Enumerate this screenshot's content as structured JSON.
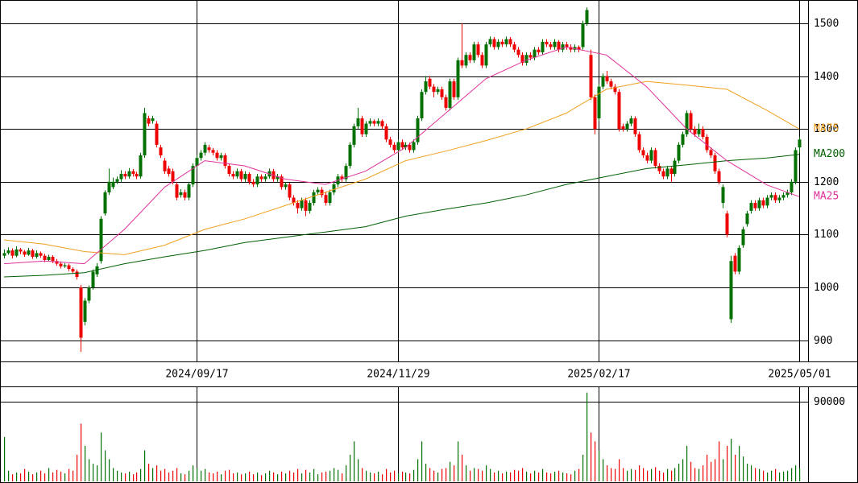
{
  "chart_data": {
    "type": "candlestick",
    "candles": [
      [
        1060,
        1072,
        1055,
        1065
      ],
      [
        1065,
        1076,
        1062,
        1070
      ],
      [
        1070,
        1074,
        1055,
        1060
      ],
      [
        1060,
        1078,
        1057,
        1072
      ],
      [
        1072,
        1075,
        1063,
        1068
      ],
      [
        1068,
        1071,
        1058,
        1062
      ],
      [
        1062,
        1075,
        1060,
        1070
      ],
      [
        1070,
        1073,
        1054,
        1058
      ],
      [
        1058,
        1070,
        1055,
        1065
      ],
      [
        1065,
        1068,
        1056,
        1060
      ],
      [
        1060,
        1064,
        1048,
        1052
      ],
      [
        1052,
        1062,
        1050,
        1058
      ],
      [
        1058,
        1061,
        1046,
        1050
      ],
      [
        1050,
        1054,
        1041,
        1045
      ],
      [
        1045,
        1049,
        1036,
        1040
      ],
      [
        1040,
        1046,
        1037,
        1042
      ],
      [
        1042,
        1045,
        1031,
        1035
      ],
      [
        1035,
        1038,
        1026,
        1030
      ],
      [
        1030,
        1034,
        1015,
        1020
      ],
      [
        1000,
        1005,
        878,
        905
      ],
      [
        935,
        980,
        928,
        975
      ],
      [
        975,
        1004,
        970,
        1000
      ],
      [
        1000,
        1034,
        996,
        1030
      ],
      [
        1025,
        1046,
        1020,
        1040
      ],
      [
        1050,
        1135,
        1045,
        1130
      ],
      [
        1140,
        1184,
        1136,
        1180
      ],
      [
        1180,
        1225,
        1175,
        1200
      ],
      [
        1190,
        1208,
        1186,
        1200
      ],
      [
        1200,
        1210,
        1196,
        1205
      ],
      [
        1205,
        1222,
        1200,
        1215
      ],
      [
        1215,
        1220,
        1205,
        1210
      ],
      [
        1210,
        1226,
        1206,
        1220
      ],
      [
        1220,
        1224,
        1210,
        1215
      ],
      [
        1215,
        1219,
        1205,
        1210
      ],
      [
        1210,
        1255,
        1206,
        1250
      ],
      [
        1250,
        1340,
        1245,
        1330
      ],
      [
        1320,
        1325,
        1305,
        1310
      ],
      [
        1315,
        1325,
        1310,
        1320
      ],
      [
        1310,
        1315,
        1265,
        1270
      ],
      [
        1265,
        1270,
        1245,
        1250
      ],
      [
        1240,
        1245,
        1215,
        1220
      ],
      [
        1225,
        1230,
        1210,
        1215
      ],
      [
        1220,
        1225,
        1195,
        1200
      ],
      [
        1195,
        1200,
        1165,
        1170
      ],
      [
        1175,
        1186,
        1170,
        1180
      ],
      [
        1180,
        1185,
        1165,
        1170
      ],
      [
        1170,
        1200,
        1165,
        1195
      ],
      [
        1195,
        1235,
        1190,
        1230
      ],
      [
        1230,
        1250,
        1225,
        1245
      ],
      [
        1245,
        1260,
        1240,
        1255
      ],
      [
        1255,
        1275,
        1250,
        1270
      ],
      [
        1265,
        1270,
        1255,
        1260
      ],
      [
        1260,
        1264,
        1250,
        1255
      ],
      [
        1255,
        1260,
        1240,
        1245
      ],
      [
        1245,
        1255,
        1240,
        1250
      ],
      [
        1250,
        1254,
        1225,
        1230
      ],
      [
        1230,
        1235,
        1210,
        1215
      ],
      [
        1215,
        1220,
        1205,
        1210
      ],
      [
        1210,
        1225,
        1206,
        1220
      ],
      [
        1220,
        1224,
        1200,
        1205
      ],
      [
        1205,
        1220,
        1200,
        1215
      ],
      [
        1215,
        1218,
        1195,
        1200
      ],
      [
        1200,
        1205,
        1190,
        1195
      ],
      [
        1195,
        1215,
        1190,
        1210
      ],
      [
        1210,
        1214,
        1200,
        1205
      ],
      [
        1205,
        1215,
        1200,
        1210
      ],
      [
        1210,
        1225,
        1206,
        1220
      ],
      [
        1220,
        1224,
        1200,
        1205
      ],
      [
        1205,
        1215,
        1200,
        1210
      ],
      [
        1210,
        1214,
        1185,
        1190
      ],
      [
        1190,
        1200,
        1185,
        1195
      ],
      [
        1195,
        1198,
        1165,
        1170
      ],
      [
        1170,
        1175,
        1155,
        1160
      ],
      [
        1160,
        1165,
        1140,
        1150
      ],
      [
        1150,
        1170,
        1145,
        1165
      ],
      [
        1165,
        1170,
        1135,
        1145
      ],
      [
        1145,
        1165,
        1140,
        1160
      ],
      [
        1160,
        1185,
        1155,
        1180
      ],
      [
        1180,
        1190,
        1175,
        1185
      ],
      [
        1185,
        1190,
        1170,
        1175
      ],
      [
        1175,
        1180,
        1155,
        1160
      ],
      [
        1160,
        1185,
        1155,
        1180
      ],
      [
        1180,
        1200,
        1175,
        1195
      ],
      [
        1195,
        1215,
        1190,
        1210
      ],
      [
        1210,
        1214,
        1200,
        1205
      ],
      [
        1205,
        1235,
        1200,
        1230
      ],
      [
        1230,
        1275,
        1225,
        1270
      ],
      [
        1270,
        1310,
        1265,
        1305
      ],
      [
        1305,
        1340,
        1300,
        1320
      ],
      [
        1320,
        1325,
        1285,
        1290
      ],
      [
        1290,
        1315,
        1285,
        1310
      ],
      [
        1310,
        1320,
        1305,
        1315
      ],
      [
        1315,
        1318,
        1305,
        1310
      ],
      [
        1310,
        1320,
        1305,
        1315
      ],
      [
        1315,
        1318,
        1300,
        1305
      ],
      [
        1305,
        1310,
        1275,
        1280
      ],
      [
        1280,
        1285,
        1265,
        1270
      ],
      [
        1270,
        1275,
        1255,
        1260
      ],
      [
        1260,
        1280,
        1255,
        1275
      ],
      [
        1275,
        1280,
        1260,
        1265
      ],
      [
        1265,
        1275,
        1260,
        1270
      ],
      [
        1270,
        1274,
        1255,
        1260
      ],
      [
        1260,
        1280,
        1255,
        1275
      ],
      [
        1275,
        1325,
        1270,
        1320
      ],
      [
        1320,
        1375,
        1315,
        1370
      ],
      [
        1370,
        1400,
        1365,
        1390
      ],
      [
        1395,
        1400,
        1375,
        1380
      ],
      [
        1380,
        1385,
        1360,
        1370
      ],
      [
        1370,
        1380,
        1365,
        1375
      ],
      [
        1375,
        1380,
        1355,
        1360
      ],
      [
        1360,
        1365,
        1335,
        1340
      ],
      [
        1340,
        1395,
        1335,
        1390
      ],
      [
        1390,
        1395,
        1355,
        1360
      ],
      [
        1360,
        1435,
        1355,
        1430
      ],
      [
        1430,
        1500,
        1415,
        1420
      ],
      [
        1420,
        1445,
        1415,
        1440
      ],
      [
        1440,
        1445,
        1425,
        1430
      ],
      [
        1430,
        1465,
        1425,
        1460
      ],
      [
        1460,
        1465,
        1435,
        1440
      ],
      [
        1440,
        1445,
        1415,
        1420
      ],
      [
        1420,
        1465,
        1415,
        1460
      ],
      [
        1460,
        1475,
        1455,
        1470
      ],
      [
        1470,
        1474,
        1450,
        1455
      ],
      [
        1455,
        1470,
        1450,
        1465
      ],
      [
        1465,
        1470,
        1455,
        1460
      ],
      [
        1460,
        1475,
        1455,
        1470
      ],
      [
        1470,
        1474,
        1455,
        1460
      ],
      [
        1460,
        1465,
        1445,
        1450
      ],
      [
        1450,
        1455,
        1435,
        1440
      ],
      [
        1440,
        1445,
        1420,
        1425
      ],
      [
        1425,
        1445,
        1420,
        1440
      ],
      [
        1440,
        1445,
        1430,
        1435
      ],
      [
        1435,
        1455,
        1430,
        1450
      ],
      [
        1450,
        1455,
        1440,
        1445
      ],
      [
        1445,
        1470,
        1440,
        1465
      ],
      [
        1465,
        1470,
        1455,
        1460
      ],
      [
        1460,
        1465,
        1450,
        1455
      ],
      [
        1455,
        1470,
        1450,
        1465
      ],
      [
        1465,
        1468,
        1445,
        1450
      ],
      [
        1450,
        1465,
        1445,
        1460
      ],
      [
        1460,
        1465,
        1450,
        1455
      ],
      [
        1455,
        1460,
        1445,
        1450
      ],
      [
        1450,
        1460,
        1445,
        1455
      ],
      [
        1455,
        1458,
        1445,
        1450
      ],
      [
        1455,
        1505,
        1450,
        1500
      ],
      [
        1500,
        1530,
        1495,
        1525
      ],
      [
        1440,
        1450,
        1355,
        1360
      ],
      [
        1360,
        1365,
        1290,
        1300
      ],
      [
        1320,
        1385,
        1315,
        1380
      ],
      [
        1380,
        1405,
        1375,
        1400
      ],
      [
        1400,
        1410,
        1385,
        1390
      ],
      [
        1390,
        1395,
        1375,
        1380
      ],
      [
        1380,
        1385,
        1365,
        1370
      ],
      [
        1370,
        1375,
        1295,
        1300
      ],
      [
        1305,
        1310,
        1295,
        1300
      ],
      [
        1300,
        1315,
        1295,
        1310
      ],
      [
        1310,
        1325,
        1305,
        1320
      ],
      [
        1320,
        1324,
        1285,
        1290
      ],
      [
        1290,
        1295,
        1255,
        1260
      ],
      [
        1260,
        1265,
        1245,
        1250
      ],
      [
        1250,
        1255,
        1235,
        1240
      ],
      [
        1240,
        1265,
        1235,
        1260
      ],
      [
        1260,
        1264,
        1225,
        1230
      ],
      [
        1230,
        1235,
        1215,
        1220
      ],
      [
        1220,
        1225,
        1205,
        1210
      ],
      [
        1210,
        1230,
        1205,
        1225
      ],
      [
        1225,
        1228,
        1200,
        1215
      ],
      [
        1215,
        1245,
        1210,
        1240
      ],
      [
        1240,
        1275,
        1235,
        1270
      ],
      [
        1270,
        1295,
        1265,
        1290
      ],
      [
        1290,
        1335,
        1285,
        1330
      ],
      [
        1330,
        1335,
        1295,
        1300
      ],
      [
        1300,
        1305,
        1285,
        1290
      ],
      [
        1290,
        1310,
        1285,
        1300
      ],
      [
        1300,
        1305,
        1280,
        1285
      ],
      [
        1285,
        1290,
        1255,
        1260
      ],
      [
        1260,
        1265,
        1245,
        1250
      ],
      [
        1250,
        1255,
        1215,
        1220
      ],
      [
        1220,
        1225,
        1195,
        1200
      ],
      [
        1160,
        1195,
        1150,
        1190
      ],
      [
        1140,
        1145,
        1095,
        1100
      ],
      [
        940,
        1060,
        933,
        1050
      ],
      [
        1060,
        1065,
        1025,
        1030
      ],
      [
        1030,
        1080,
        1025,
        1075
      ],
      [
        1080,
        1115,
        1075,
        1110
      ],
      [
        1120,
        1145,
        1115,
        1140
      ],
      [
        1145,
        1165,
        1140,
        1160
      ],
      [
        1160,
        1165,
        1145,
        1150
      ],
      [
        1150,
        1170,
        1145,
        1165
      ],
      [
        1165,
        1170,
        1150,
        1155
      ],
      [
        1155,
        1175,
        1150,
        1170
      ],
      [
        1170,
        1180,
        1165,
        1175
      ],
      [
        1175,
        1180,
        1160,
        1165
      ],
      [
        1165,
        1175,
        1160,
        1170
      ],
      [
        1170,
        1180,
        1165,
        1175
      ],
      [
        1175,
        1185,
        1170,
        1180
      ],
      [
        1180,
        1205,
        1175,
        1200
      ],
      [
        1200,
        1265,
        1195,
        1260
      ],
      [
        1265,
        1285,
        1255,
        1280
      ]
    ],
    "up_color": "#007000",
    "down_color": "#ee0000",
    "xlim": [
      -1,
      199.6
    ],
    "xticks": [
      {
        "value": 48,
        "label": "2024/09/17"
      },
      {
        "value": 98,
        "label": "2024/11/29"
      },
      {
        "value": 148,
        "label": "2025/02/17"
      },
      {
        "value": 198,
        "label": "2025/05/01"
      }
    ],
    "ylim": [
      860,
      1544
    ],
    "yticks": [
      900,
      1000,
      1100,
      1200,
      1300,
      1400,
      1500
    ],
    "grid": true,
    "series": [
      {
        "name": "MA75",
        "color": "#f0a020",
        "x": [
          0,
          10,
          20,
          30,
          40,
          50,
          60,
          70,
          80,
          90,
          100,
          110,
          120,
          130,
          140,
          150,
          160,
          170,
          180,
          190,
          198
        ],
        "values": [
          1090,
          1082,
          1068,
          1062,
          1080,
          1110,
          1130,
          1155,
          1180,
          1205,
          1240,
          1258,
          1278,
          1300,
          1330,
          1375,
          1390,
          1383,
          1375,
          1335,
          1300
        ]
      },
      {
        "name": "MA200",
        "color": "#006000",
        "x": [
          0,
          10,
          20,
          30,
          40,
          50,
          60,
          70,
          80,
          90,
          100,
          110,
          120,
          130,
          140,
          150,
          160,
          170,
          180,
          190,
          198
        ],
        "values": [
          1020,
          1023,
          1028,
          1045,
          1058,
          1070,
          1085,
          1095,
          1105,
          1115,
          1135,
          1148,
          1160,
          1175,
          1195,
          1210,
          1225,
          1232,
          1240,
          1245,
          1252
        ]
      },
      {
        "name": "MA25",
        "color": "#e0309a",
        "x": [
          0,
          10,
          20,
          30,
          40,
          50,
          60,
          70,
          80,
          90,
          100,
          110,
          120,
          130,
          140,
          150,
          160,
          170,
          180,
          190,
          198
        ],
        "values": [
          1045,
          1050,
          1045,
          1110,
          1190,
          1240,
          1230,
          1205,
          1195,
          1220,
          1265,
          1330,
          1395,
          1430,
          1455,
          1440,
          1380,
          1300,
          1240,
          1194,
          1172
        ]
      }
    ],
    "volume": [
      50000,
      12000,
      8000,
      10000,
      9000,
      14000,
      11000,
      8000,
      10000,
      12000,
      9000,
      15000,
      10000,
      13000,
      11000,
      9000,
      14000,
      12000,
      30000,
      65000,
      40000,
      25000,
      20000,
      18000,
      55000,
      35000,
      25000,
      15000,
      12000,
      10000,
      9000,
      11000,
      8000,
      10000,
      14000,
      35000,
      20000,
      15000,
      18000,
      12000,
      14000,
      10000,
      12000,
      15000,
      9000,
      8000,
      12000,
      18000,
      15000,
      12000,
      14000,
      10000,
      9000,
      11000,
      8000,
      12000,
      13000,
      9000,
      10000,
      8000,
      9000,
      11000,
      8000,
      10000,
      7000,
      9000,
      12000,
      10000,
      8000,
      11000,
      9000,
      12000,
      10000,
      14000,
      9000,
      13000,
      10000,
      14000,
      8000,
      10000,
      11000,
      12000,
      15000,
      13000,
      9000,
      18000,
      30000,
      45000,
      25000,
      15000,
      12000,
      10000,
      9000,
      11000,
      8000,
      14000,
      10000,
      12000,
      9000,
      11000,
      10000,
      9000,
      13000,
      25000,
      45000,
      20000,
      15000,
      12000,
      10000,
      14000,
      15000,
      22000,
      18000,
      45000,
      30000,
      18000,
      12000,
      15000,
      14000,
      12000,
      18000,
      14000,
      10000,
      12000,
      9000,
      11000,
      10000,
      13000,
      12000,
      15000,
      11000,
      9000,
      12000,
      10000,
      14000,
      10000,
      9000,
      11000,
      12000,
      10000,
      9000,
      8000,
      12000,
      14000,
      30000,
      100000,
      55000,
      45000,
      35000,
      25000,
      18000,
      15000,
      14000,
      25000,
      15000,
      12000,
      14000,
      13000,
      18000,
      15000,
      12000,
      14000,
      16000,
      12000,
      10000,
      14000,
      12000,
      15000,
      20000,
      25000,
      40000,
      22000,
      15000,
      14000,
      18000,
      30000,
      22000,
      25000,
      45000,
      25000,
      40000,
      48000,
      30000,
      40000,
      28000,
      20000,
      18000,
      15000,
      14000,
      12000,
      10000,
      12000,
      14000,
      10000,
      11000,
      12000,
      15000,
      18000,
      15000
    ],
    "volume_ylim": [
      0,
      107000
    ],
    "volume_yticks": [
      90000
    ]
  }
}
